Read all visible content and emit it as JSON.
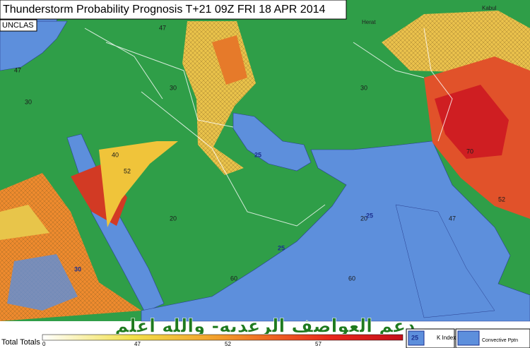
{
  "header": {
    "title": "Thunderstorm Probability Prognosis T+21 09Z FRI 18 APR 2014",
    "classification": "UNCLAS"
  },
  "map": {
    "labels": [
      "30",
      "30",
      "30",
      "40",
      "20",
      "20",
      "60",
      "60",
      "70",
      "47",
      "47",
      "47",
      "52",
      "52",
      "25",
      "25",
      "25",
      "30",
      "Herat",
      "Kabul"
    ]
  },
  "overlay_text": "دعم العواصف الرعديه- والله اعلم",
  "legend": {
    "scale_title": "Total Totals",
    "scale_ticks": [
      "0",
      "47",
      "52",
      "57"
    ],
    "k_index_sample": "25",
    "k_index_label": "K Index",
    "convective_label": "Convective Pptn"
  }
}
